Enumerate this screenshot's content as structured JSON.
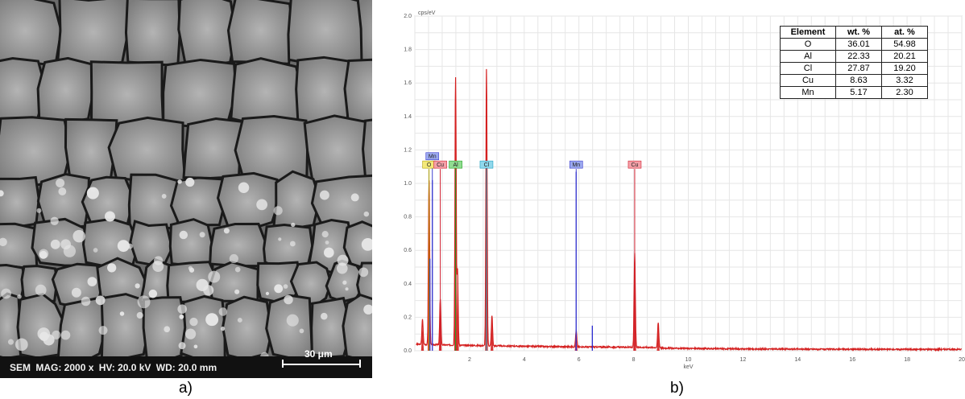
{
  "sem": {
    "label": "SEM",
    "mag": "MAG: 2000 x",
    "hv": "HV: 20.0 kV",
    "wd": "WD: 20.0 mm",
    "scale": "30 μm"
  },
  "captions": {
    "a": "a)",
    "b": "b)"
  },
  "table": {
    "headers": [
      "Element",
      "wt. %",
      "at. %"
    ],
    "rows": [
      [
        "O",
        "36.01",
        "54.98"
      ],
      [
        "Al",
        "22.33",
        "20.21"
      ],
      [
        "Cl",
        "27.87",
        "19.20"
      ],
      [
        "Cu",
        "8.63",
        "3.32"
      ],
      [
        "Mn",
        "5.17",
        "2.30"
      ]
    ]
  },
  "chart_data": {
    "type": "line",
    "title": "",
    "ylabel": "cps/eV",
    "xlabel": "keV",
    "xlim": [
      0,
      20
    ],
    "ylim": [
      0,
      2.0
    ],
    "xticks": [
      2,
      4,
      6,
      8,
      10,
      12,
      14,
      16,
      18,
      20
    ],
    "yticks": [
      0.0,
      0.2,
      0.4,
      0.6,
      0.8,
      1.0,
      1.2,
      1.4,
      1.6,
      1.8,
      2.0
    ],
    "grid": true,
    "series": [
      {
        "name": "",
        "color": "#d42020",
        "peaks": [
          {
            "x": 0.28,
            "y": 0.15
          },
          {
            "x": 0.52,
            "y": 0.98
          },
          {
            "x": 0.93,
            "y": 0.27
          },
          {
            "x": 1.49,
            "y": 1.6
          },
          {
            "x": 1.56,
            "y": 0.45
          },
          {
            "x": 2.62,
            "y": 1.65
          },
          {
            "x": 2.82,
            "y": 0.18
          },
          {
            "x": 5.9,
            "y": 0.1
          },
          {
            "x": 8.04,
            "y": 0.56
          },
          {
            "x": 8.9,
            "y": 0.15
          }
        ]
      },
      {
        "name": "",
        "color": "#2a2ad0",
        "peaks": [
          {
            "x": 0.55,
            "y": 0.55
          },
          {
            "x": 0.64,
            "y": 1.02
          },
          {
            "x": 5.9,
            "y": 1.07
          },
          {
            "x": 6.49,
            "y": 0.15
          }
        ]
      }
    ],
    "markers": [
      {
        "label": "Mn",
        "x": 0.64,
        "color": "#4040d0",
        "bg": "#9aa8ee",
        "row": 0
      },
      {
        "label": "O",
        "x": 0.52,
        "color": "#b0a000",
        "bg": "#f4e97a",
        "row": 1
      },
      {
        "label": "Cu",
        "x": 0.93,
        "color": "#d02030",
        "bg": "#f4a0a8",
        "row": 1
      },
      {
        "label": "Al",
        "x": 1.49,
        "color": "#20a020",
        "bg": "#90dc90",
        "row": 1
      },
      {
        "label": "Cl",
        "x": 2.62,
        "color": "#20a0c0",
        "bg": "#90d8ec",
        "row": 1
      },
      {
        "label": "Mn",
        "x": 5.9,
        "color": "#4040d0",
        "bg": "#9aa8ee",
        "row": 1
      },
      {
        "label": "Cu",
        "x": 8.04,
        "color": "#d02030",
        "bg": "#f4a0a8",
        "row": 1
      }
    ]
  }
}
